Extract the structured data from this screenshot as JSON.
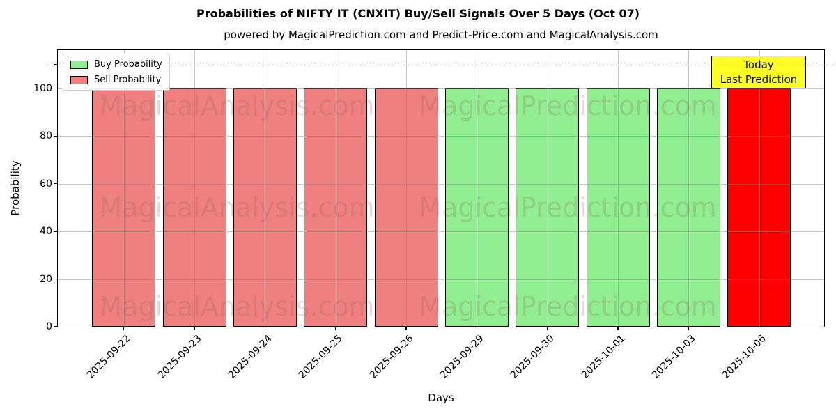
{
  "title": "Probabilities of NIFTY IT (CNXIT) Buy/Sell Signals Over 5 Days (Oct 07)",
  "subtitle": "powered by MagicalPrediction.com and Predict-Price.com and MagicalAnalysis.com",
  "legend": {
    "items": [
      {
        "label": "Buy Probability",
        "color": "#90ee90"
      },
      {
        "label": "Sell Probability",
        "color": "#f08080"
      }
    ]
  },
  "annotation": {
    "line1": "Today",
    "line2": "Last Prediction",
    "bg_color": "#ffff00",
    "bg_alpha": 0.85
  },
  "watermarks": {
    "left": "MagicalAnalysis.com",
    "right": "MagicalPrediction.com"
  },
  "chart_data": {
    "type": "bar",
    "title": "Probabilities of NIFTY IT (CNXIT) Buy/Sell Signals Over 5 Days (Oct 07)",
    "subtitle": "powered by MagicalPrediction.com and Predict-Price.com and MagicalAnalysis.com",
    "xlabel": "Days",
    "ylabel": "Probability",
    "categories": [
      "2025-09-22",
      "2025-09-23",
      "2025-09-24",
      "2025-09-25",
      "2025-09-26",
      "2025-09-29",
      "2025-09-30",
      "2025-10-01",
      "2025-10-03",
      "2025-10-06"
    ],
    "bars": [
      {
        "date": "2025-09-22",
        "value": 100,
        "signal": "sell",
        "color": "#f08080"
      },
      {
        "date": "2025-09-23",
        "value": 100,
        "signal": "sell",
        "color": "#f08080"
      },
      {
        "date": "2025-09-24",
        "value": 100,
        "signal": "sell",
        "color": "#f08080"
      },
      {
        "date": "2025-09-25",
        "value": 100,
        "signal": "sell",
        "color": "#f08080"
      },
      {
        "date": "2025-09-26",
        "value": 100,
        "signal": "sell",
        "color": "#f08080"
      },
      {
        "date": "2025-09-29",
        "value": 100,
        "signal": "buy",
        "color": "#90ee90"
      },
      {
        "date": "2025-09-30",
        "value": 100,
        "signal": "buy",
        "color": "#90ee90"
      },
      {
        "date": "2025-10-01",
        "value": 100,
        "signal": "buy",
        "color": "#90ee90"
      },
      {
        "date": "2025-10-03",
        "value": 100,
        "signal": "buy",
        "color": "#90ee90"
      },
      {
        "date": "2025-10-06",
        "value": 100,
        "signal": "sell-today",
        "color": "#ff0000"
      }
    ],
    "series": [
      {
        "name": "Sell Probability",
        "color": "#f08080",
        "values": [
          100,
          100,
          100,
          100,
          100,
          0,
          0,
          0,
          0,
          0
        ]
      },
      {
        "name": "Buy Probability",
        "color": "#90ee90",
        "values": [
          0,
          0,
          0,
          0,
          0,
          100,
          100,
          100,
          100,
          0
        ]
      },
      {
        "name": "Today Sell (highlighted)",
        "color": "#ff0000",
        "values": [
          0,
          0,
          0,
          0,
          0,
          0,
          0,
          0,
          0,
          100
        ]
      }
    ],
    "ylim": [
      0,
      116
    ],
    "yticks": [
      0,
      20,
      40,
      60,
      80,
      100
    ],
    "reference_line": {
      "y": 110,
      "style": "dashed",
      "color": "#8a8a8a"
    },
    "grid": true,
    "bar_edge_color": "#000000",
    "bar_width_fraction": 0.9,
    "legend_position": "upper left"
  }
}
